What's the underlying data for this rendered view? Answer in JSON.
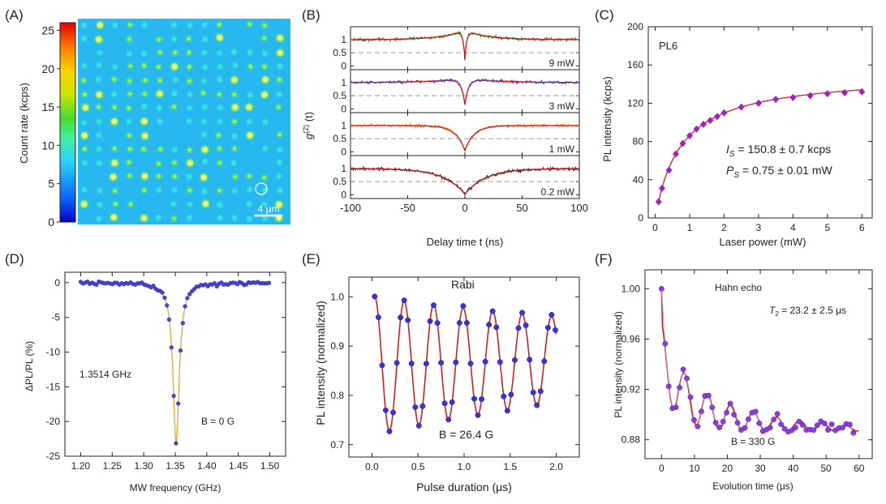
{
  "chart_data": [
    {
      "panel": "(A)",
      "type": "heatmap",
      "ylabel": "Count rate (kcps)",
      "colorbar_ticks": [
        0,
        5,
        10,
        15,
        20,
        25
      ],
      "colorbar_range": [
        0,
        26
      ],
      "scalebar": "4 μm",
      "colormap": [
        "#0000c8",
        "#0a64ff",
        "#28d2ff",
        "#40f0a0",
        "#46dc32",
        "#c8e600",
        "#ffd200",
        "#ff7800",
        "#e60000"
      ]
    },
    {
      "panel": "(B)",
      "type": "line",
      "xlabel": "Delay time t (ns)",
      "ylabel": "g(2) (t)",
      "xlim": [
        -100,
        100
      ],
      "xticks": [
        -100,
        -50,
        0,
        50,
        100
      ],
      "yticks": [
        0,
        0.5,
        1
      ],
      "series": [
        {
          "name": "9 mW",
          "color": "#2e7d1e",
          "g0": 0.22,
          "tau_ns": 1.5,
          "bunch": 0.35,
          "tb_ns": 20
        },
        {
          "name": "3 mW",
          "color": "#3a3ad6",
          "g0": 0.15,
          "tau_ns": 3,
          "bunch": 0.15,
          "tb_ns": 30
        },
        {
          "name": "1 mW",
          "color": "#ff7f1a",
          "g0": 0.05,
          "tau_ns": 8,
          "bunch": 0.0,
          "tb_ns": 0
        },
        {
          "name": "0.2 mW",
          "color": "#111111",
          "g0": 0.02,
          "tau_ns": 18,
          "bunch": 0.0,
          "tb_ns": 0
        }
      ]
    },
    {
      "panel": "(C)",
      "type": "scatter",
      "title": "PL6",
      "xlabel": "Laser power (mW)",
      "ylabel": "PL intensity (kcps)",
      "xlim": [
        -0.2,
        6.3
      ],
      "ylim": [
        0,
        200
      ],
      "xticks": [
        0,
        1,
        2,
        3,
        4,
        5,
        6
      ],
      "yticks": [
        0,
        40,
        80,
        120,
        160,
        200
      ],
      "x": [
        0.1,
        0.2,
        0.4,
        0.6,
        0.8,
        1.0,
        1.2,
        1.4,
        1.6,
        1.8,
        2.0,
        2.5,
        3.0,
        3.5,
        4.0,
        4.5,
        5.0,
        5.5,
        6.0
      ],
      "y": [
        17,
        31,
        50,
        67,
        78,
        86,
        93,
        98,
        102,
        106,
        110,
        116,
        120,
        124,
        126,
        128,
        130,
        131,
        132
      ],
      "fit": {
        "I_s": 150.8,
        "P_s": 0.75
      },
      "annotations": [
        "I_S = 150.8 ± 0.7 kcps",
        "P_S = 0.75 ± 0.01 mW"
      ]
    },
    {
      "panel": "(D)",
      "type": "scatter",
      "xlabel": "MW frequency (GHz)",
      "ylabel": "ΔPL/PL  (%)",
      "xlim": [
        1.175,
        1.525
      ],
      "ylim": [
        -25,
        1.5
      ],
      "xticks": [
        1.2,
        1.25,
        1.3,
        1.35,
        1.4,
        1.45,
        1.5
      ],
      "yticks": [
        0,
        -5,
        -10,
        -15,
        -20,
        -25
      ],
      "dip": {
        "center_ghz": 1.3514,
        "depth_pct": -23,
        "hwhm_ghz": 0.006
      },
      "annotations": [
        "1.3514 GHz",
        "B = 0 G"
      ]
    },
    {
      "panel": "(E)",
      "type": "scatter",
      "title": "Rabi",
      "xlabel": "Pulse duration (μs)",
      "ylabel": "PL intensity (normalized)",
      "xlim": [
        -0.25,
        2.25
      ],
      "ylim": [
        0.675,
        1.04
      ],
      "xticks": [
        0.0,
        0.5,
        1.0,
        1.5,
        2.0
      ],
      "yticks": [
        0.7,
        0.8,
        0.9,
        1.0
      ],
      "rabi": {
        "period_us": 0.32,
        "start_x": 0.03,
        "amp": 0.139,
        "decay_us": 4.2,
        "center": 0.861,
        "drift": 0.006
      },
      "annotations": [
        "B = 26.4 G"
      ]
    },
    {
      "panel": "(F)",
      "type": "scatter",
      "title": "Hahn echo",
      "xlabel": "Evolution time (μs)",
      "ylabel": "PL intensity (normalized)",
      "xlim": [
        -5,
        64
      ],
      "ylim": [
        0.865,
        1.015
      ],
      "xticks": [
        0,
        10,
        20,
        30,
        40,
        50,
        60
      ],
      "yticks": [
        0.88,
        0.92,
        0.96,
        1.0
      ],
      "echo": {
        "T2_us": 23.2,
        "offset": 0.887,
        "osc_period_us": 7,
        "baseline_amp": 0.06,
        "baseline_tau": 5,
        "osc_amp": 0.05
      },
      "annotations": [
        "T2 = 23.2 ± 2.5 μs",
        "B = 330 G"
      ]
    }
  ],
  "labels": {
    "a": "(A)",
    "b": "(B)",
    "c": "(C)",
    "d": "(D)",
    "e": "(E)",
    "f": "(F)",
    "a_ylabel": "Count rate (kcps)",
    "a_scalebar": "4 μm",
    "b_ylabel": "g",
    "b_ylabel_sup": "(2)",
    "b_ylabel_tail": " (t)",
    "b_xlabel": "Delay time t (ns)",
    "c_title": "PL6",
    "c_ann1": "I",
    "c_ann1_sub": "S",
    "c_ann1_tail": " = 150.8 ± 0.7 kcps",
    "c_ann2": "P",
    "c_ann2_sub": "S",
    "c_ann2_tail": " = 0.75 ± 0.01 mW",
    "c_xlabel": "Laser power (mW)",
    "c_ylabel": "PL intensity (kcps)",
    "d_ann1": "1.3514 GHz",
    "d_ann2": "B = 0 G",
    "d_xlabel": "MW frequency (GHz)",
    "d_ylabel": "ΔPL/PL  (%)",
    "e_title": "Rabi",
    "e_ann": "B = 26.4 G",
    "e_xlabel": "Pulse duration (μs)",
    "e_ylabel": "PL intensity (normalized)",
    "f_title": "Hahn echo",
    "f_ann1": "T",
    "f_ann1_sub": "2",
    "f_ann1_tail": " = 23.2 ± 2.5 μs",
    "f_ann2": "B = 330 G",
    "f_xlabel": "Evolution time (μs)",
    "f_ylabel": "PL intensity (normalized)"
  }
}
